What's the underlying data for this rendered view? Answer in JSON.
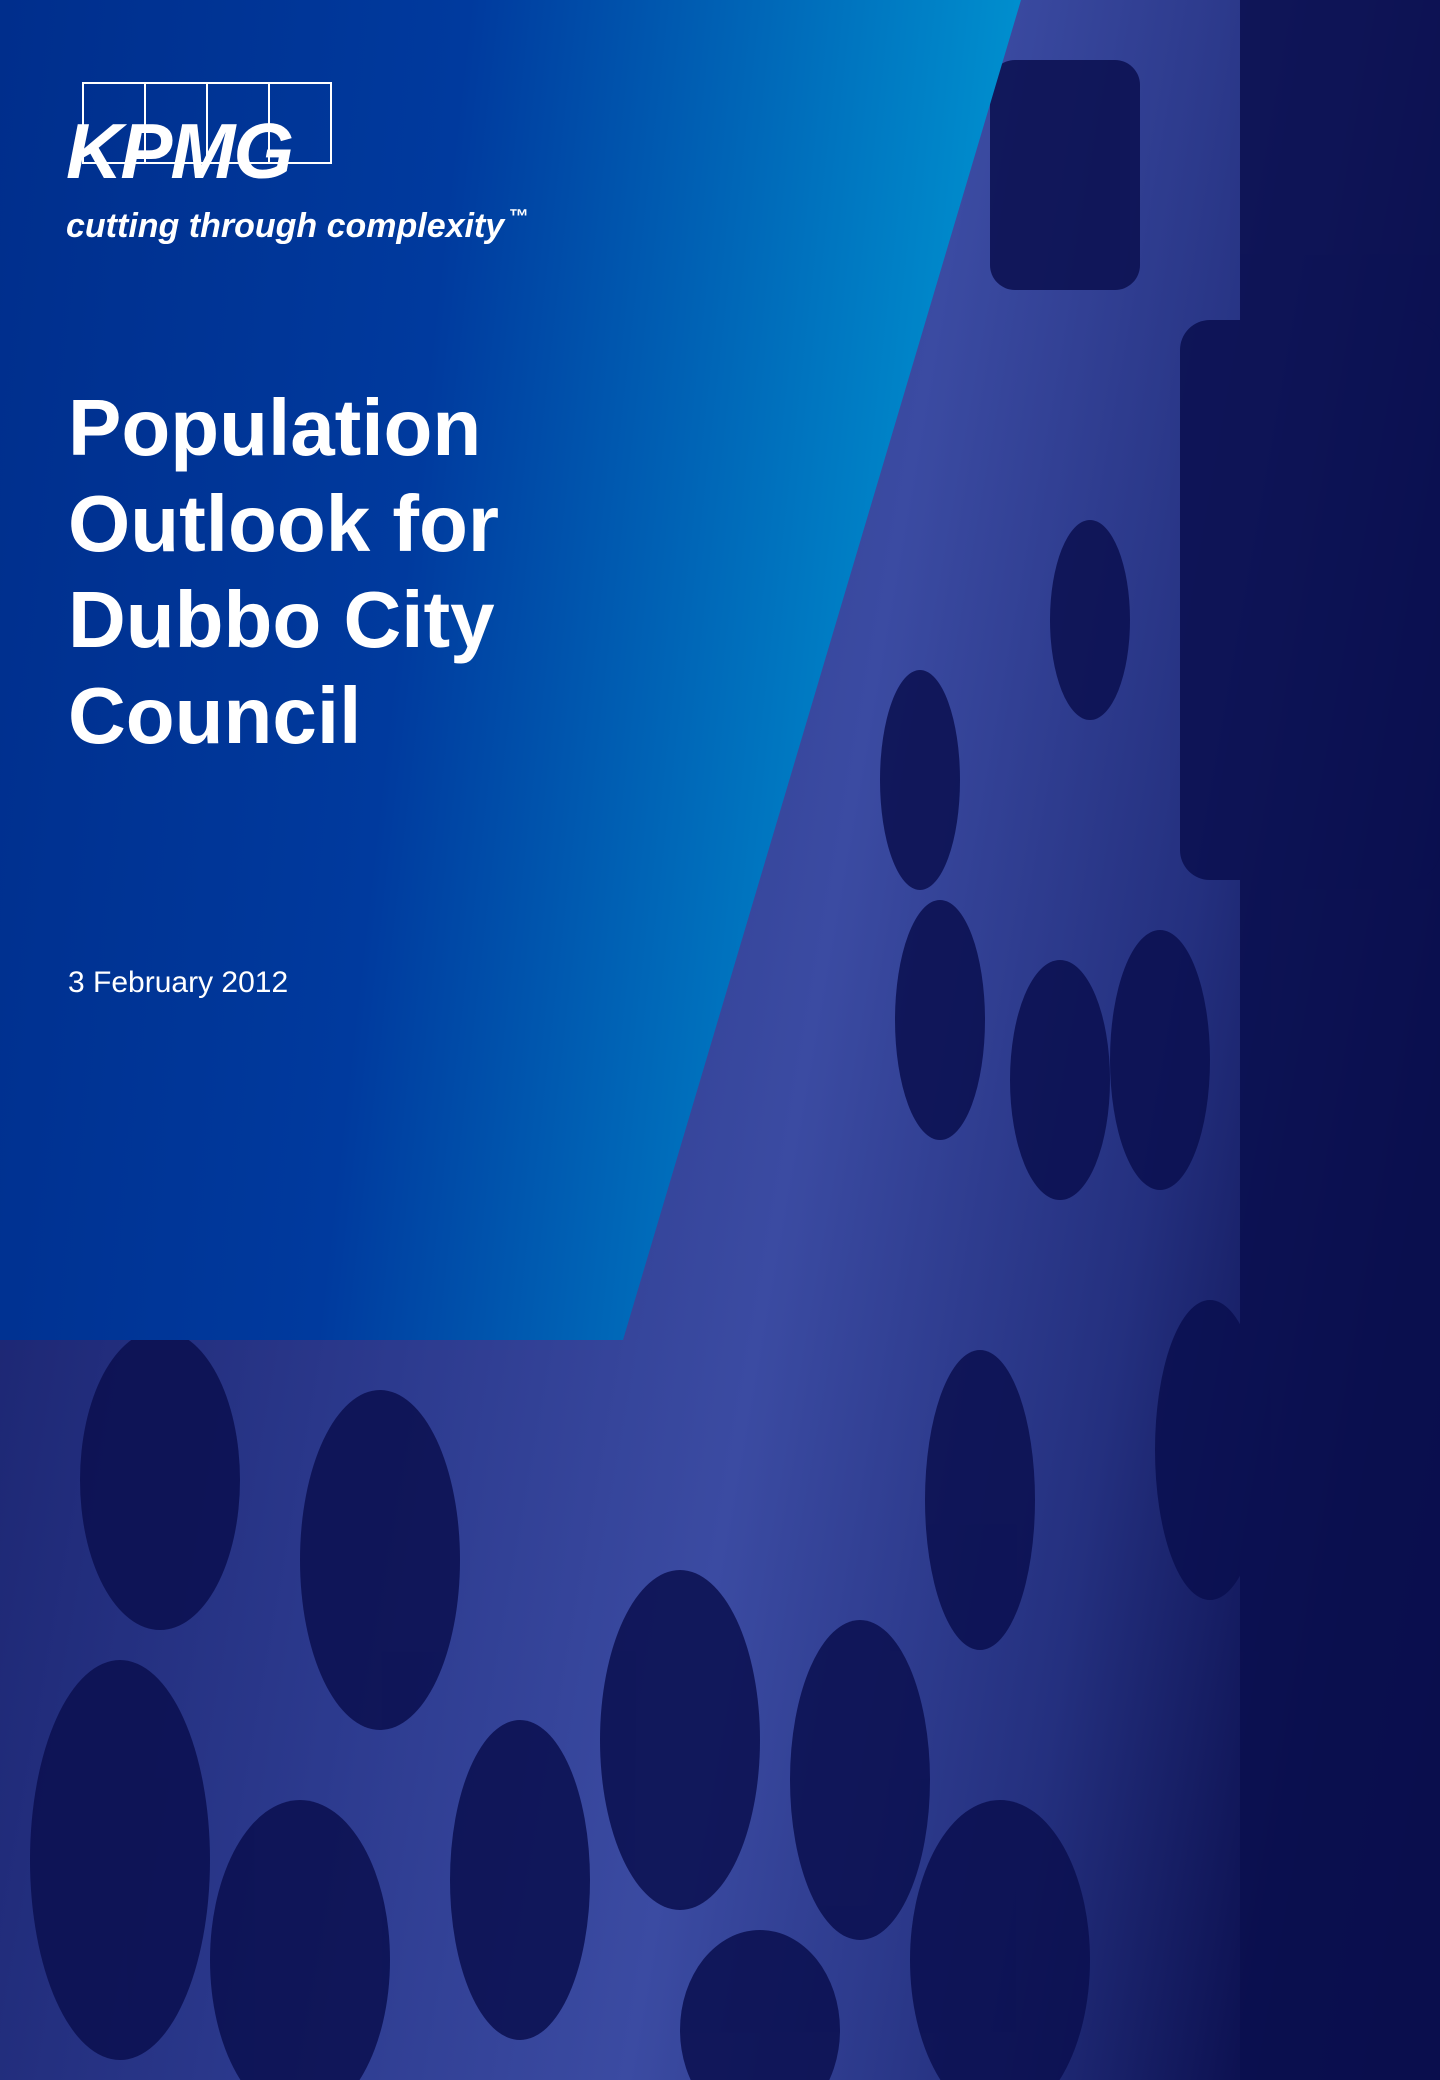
{
  "logo": {
    "wordmark": "KPMG",
    "tagline": "cutting through complexity",
    "trademark": "™"
  },
  "title": {
    "lines": [
      "Population",
      "Outlook for",
      "Dubbo City",
      "Council"
    ]
  },
  "date": "3 February 2012"
}
